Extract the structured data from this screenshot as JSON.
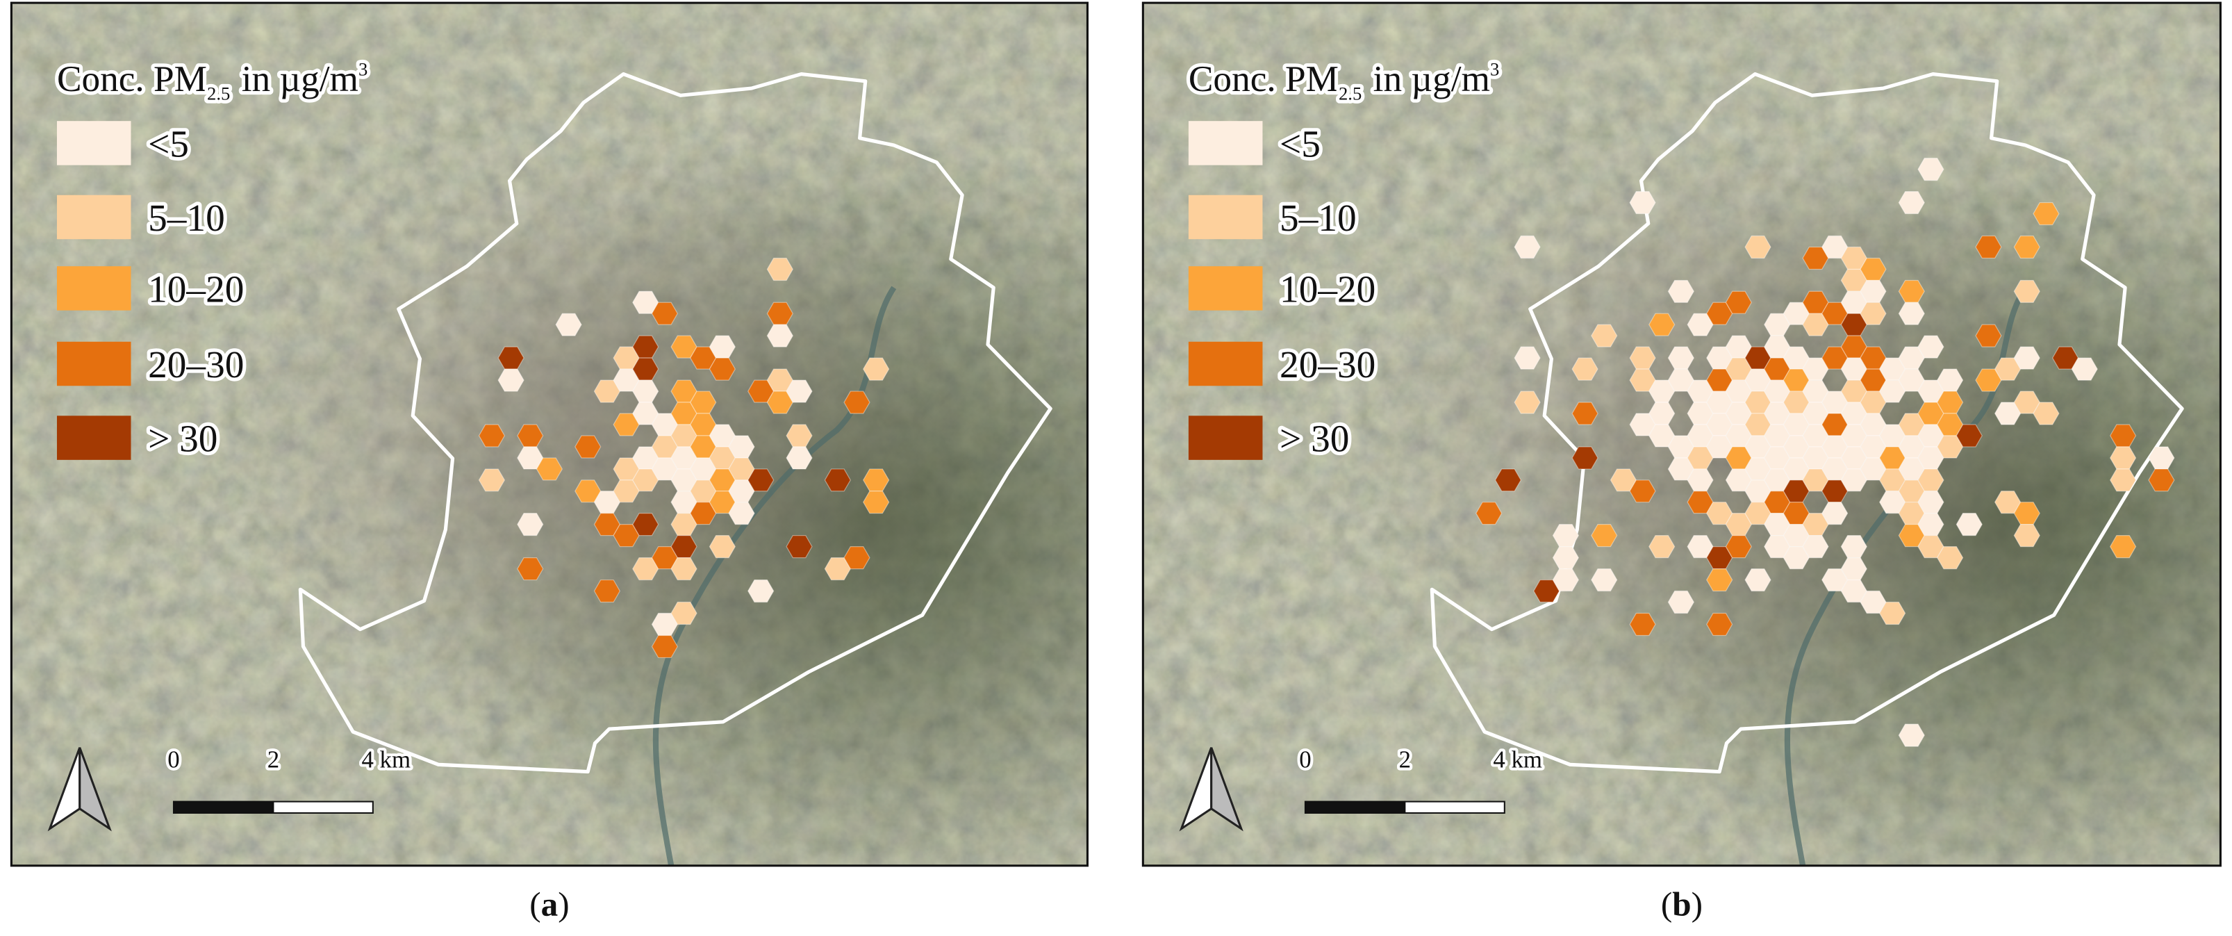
{
  "panels": [
    {
      "legend": {
        "title": {
          "main": "Conc. PM",
          "sub": "2.5",
          "mid": "in µg/m",
          "sup": "3"
        },
        "items": [
          {
            "label": "<5",
            "color": "#fdeee0"
          },
          {
            "label": "5–10",
            "color": "#fdd09c"
          },
          {
            "label": "10–20",
            "color": "#fca53a"
          },
          {
            "label": "20–30",
            "color": "#e5700f"
          },
          {
            "label": "> 30",
            "color": "#a43a03"
          }
        ]
      },
      "scale_bar": [
        "0",
        "2",
        "4 km"
      ],
      "caption": {
        "open": "(",
        "letter": "a",
        "close": ")"
      }
    },
    {
      "legend": {
        "title": {
          "main": "Conc. PM",
          "sub": "2.5",
          "mid": "in µg/m",
          "sup": "3"
        },
        "items": [
          {
            "label": "<5",
            "color": "#fdeee0"
          },
          {
            "label": "5–10",
            "color": "#fdd09c"
          },
          {
            "label": "10–20",
            "color": "#fca53a"
          },
          {
            "label": "20–30",
            "color": "#e5700f"
          },
          {
            "label": "> 30",
            "color": "#a43a03"
          }
        ]
      },
      "scale_bar": [
        "0",
        "2",
        "4 km"
      ],
      "caption": {
        "open": "(",
        "letter": "b",
        "close": ")"
      }
    }
  ]
}
